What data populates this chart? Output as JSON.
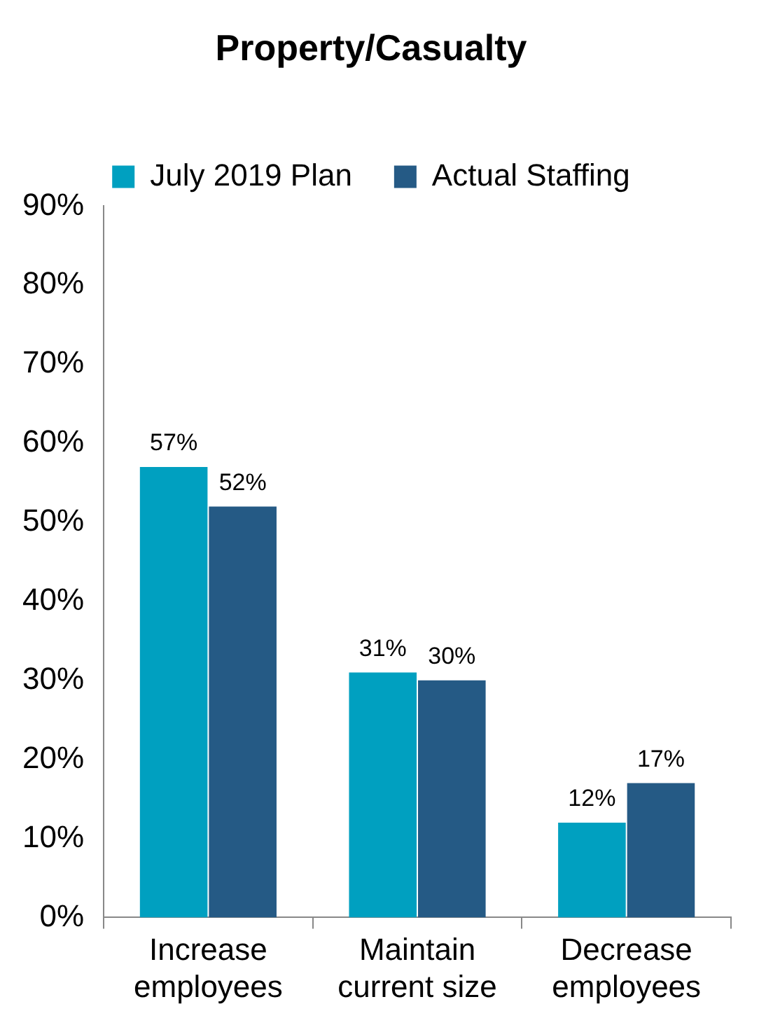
{
  "chart_data": {
    "type": "bar",
    "title": "Property/Casualty",
    "categories": [
      "Increase employees",
      "Maintain current size",
      "Decrease employees"
    ],
    "series": [
      {
        "name": "July 2019 Plan",
        "color": "#00a0c0",
        "values": [
          57,
          31,
          12
        ]
      },
      {
        "name": "Actual Staffing",
        "color": "#255a85",
        "values": [
          52,
          30,
          17
        ]
      }
    ],
    "ylim": [
      0,
      90
    ],
    "yticks": [
      {
        "value": 0,
        "label": "0%"
      },
      {
        "value": 10,
        "label": "10%"
      },
      {
        "value": 20,
        "label": "20%"
      },
      {
        "value": 30,
        "label": "30%"
      },
      {
        "value": 40,
        "label": "40%"
      },
      {
        "value": 50,
        "label": "50%"
      },
      {
        "value": 60,
        "label": "60%"
      },
      {
        "value": 70,
        "label": "70%"
      },
      {
        "value": 80,
        "label": "80%"
      },
      {
        "value": 90,
        "label": "90%"
      }
    ],
    "value_labels": [
      [
        "57%",
        "31%",
        "12%"
      ],
      [
        "52%",
        "30%",
        "17%"
      ]
    ],
    "grid": false,
    "legend": "top"
  }
}
